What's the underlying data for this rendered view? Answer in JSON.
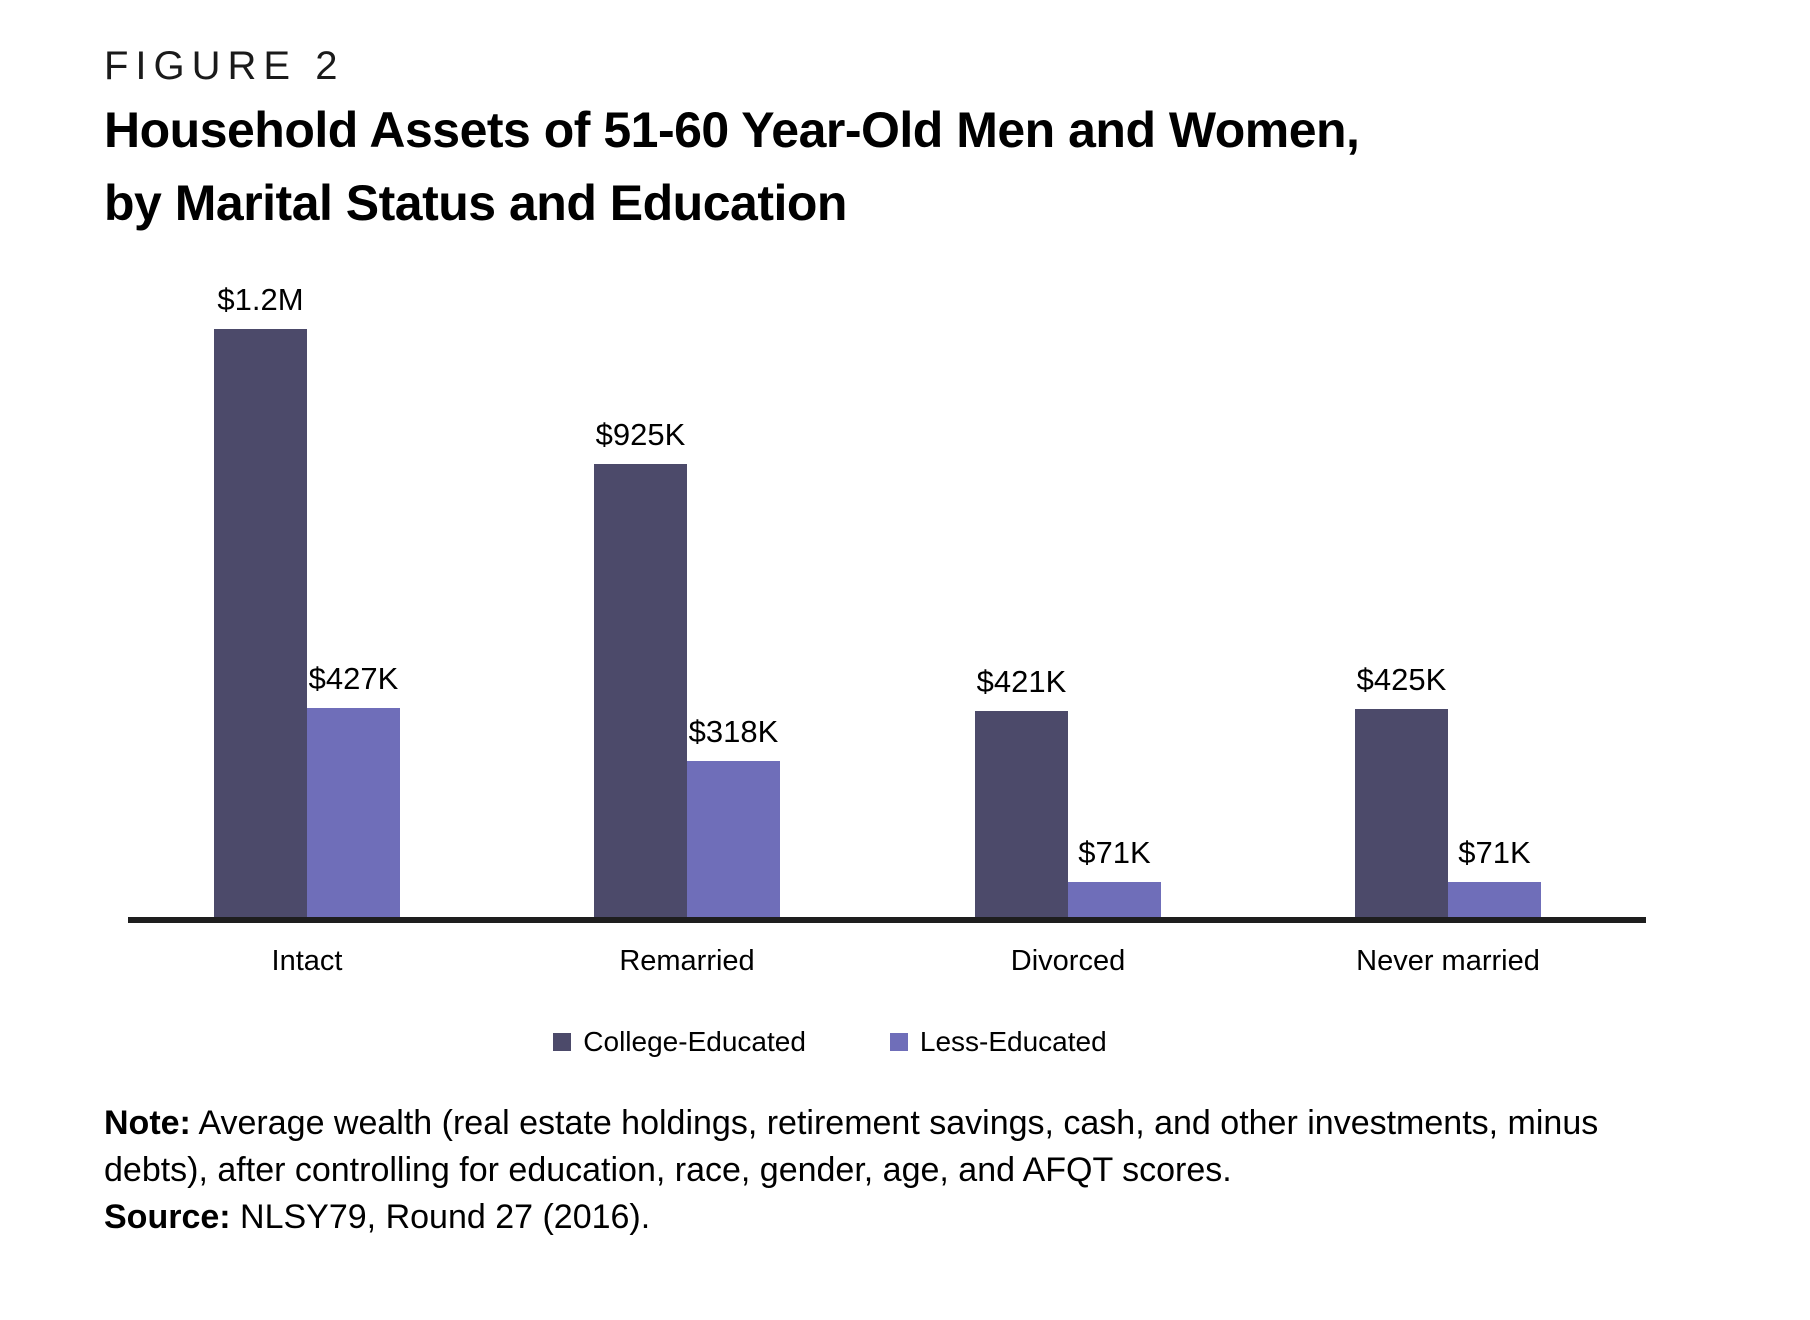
{
  "figure": {
    "label": "FIGURE 2",
    "title_line1": "Household Assets of 51-60 Year-Old Men and Women,",
    "title_line2": "by Marital Status and Education"
  },
  "chart_data": {
    "type": "bar",
    "title": "Household Assets of 51-60 Year-Old Men and Women, by Marital Status and Education",
    "categories": [
      "Intact",
      "Remarried",
      "Divorced",
      "Never married"
    ],
    "series": [
      {
        "name": "College-Educated",
        "color": "#4c4a6a",
        "values": [
          1200000,
          925000,
          421000,
          425000
        ],
        "value_labels": [
          "$1.2M",
          "$925K",
          "$421K",
          "$425K"
        ]
      },
      {
        "name": "Less-Educated",
        "color": "#6f6eb9",
        "values": [
          427000,
          318000,
          71000,
          71000
        ],
        "value_labels": [
          "$427K",
          "$318K",
          "$71K",
          "$71K"
        ]
      }
    ],
    "xlabel": "",
    "ylabel": "",
    "ylim": [
      0,
      1200000
    ],
    "grid": false,
    "y_axis_shown": false,
    "legend_position": "bottom",
    "axis_color": "#1e1e1e"
  },
  "note": {
    "note_label": "Note:",
    "note_body": " Average wealth (real estate holdings, retirement savings, cash, and other investments, minus debts), after controlling for education, race, gender, age, and AFQT scores.",
    "source_label": "Source:",
    "source_body": " NLSY79, Round 27 (2016)."
  }
}
